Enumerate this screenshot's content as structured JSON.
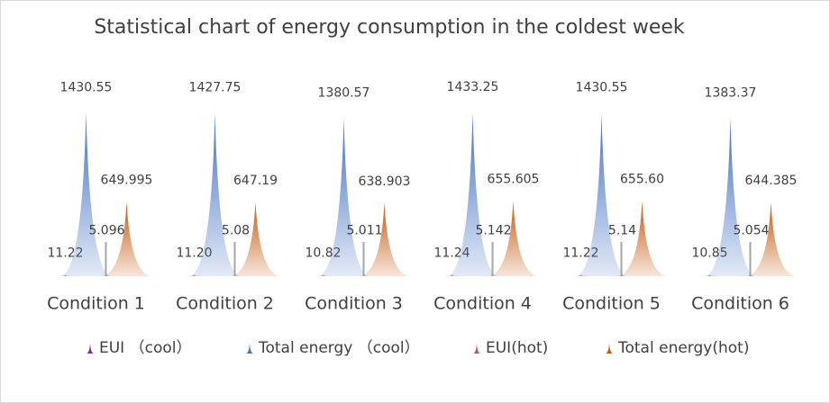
{
  "chart_data": {
    "type": "spike",
    "title": "Statistical chart of energy consumption in the coldest week",
    "categories": [
      "Condition 1",
      "Condition 2",
      "Condition 3",
      "Condition 4",
      "Condition 5",
      "Condition 6"
    ],
    "series": [
      {
        "name": "EUI （cool）",
        "color": "#7030a0",
        "values": [
          11.22,
          11.2,
          10.82,
          11.24,
          11.22,
          10.85
        ],
        "value_labels": [
          "11.22",
          "11.20",
          "10.82",
          "11.24",
          "11.22",
          "10.85"
        ]
      },
      {
        "name": "Total energy （cool）",
        "color": "#4472c4",
        "values": [
          1430.55,
          1427.75,
          1380.57,
          1433.25,
          1430.55,
          1383.37
        ]
      },
      {
        "name": "EUI(hot)",
        "color": "#a9559f",
        "values": [
          5.096,
          5.08,
          5.011,
          5.142,
          5.14,
          5.054
        ]
      },
      {
        "name": "Total energy(hot)",
        "color": "#c55a11",
        "values": [
          649.995,
          647.19,
          638.903,
          655.605,
          655.6,
          644.385
        ],
        "value_labels": [
          "649.995",
          "647.19",
          "638.903",
          "655.605",
          "655.60",
          "644.385"
        ]
      }
    ]
  }
}
